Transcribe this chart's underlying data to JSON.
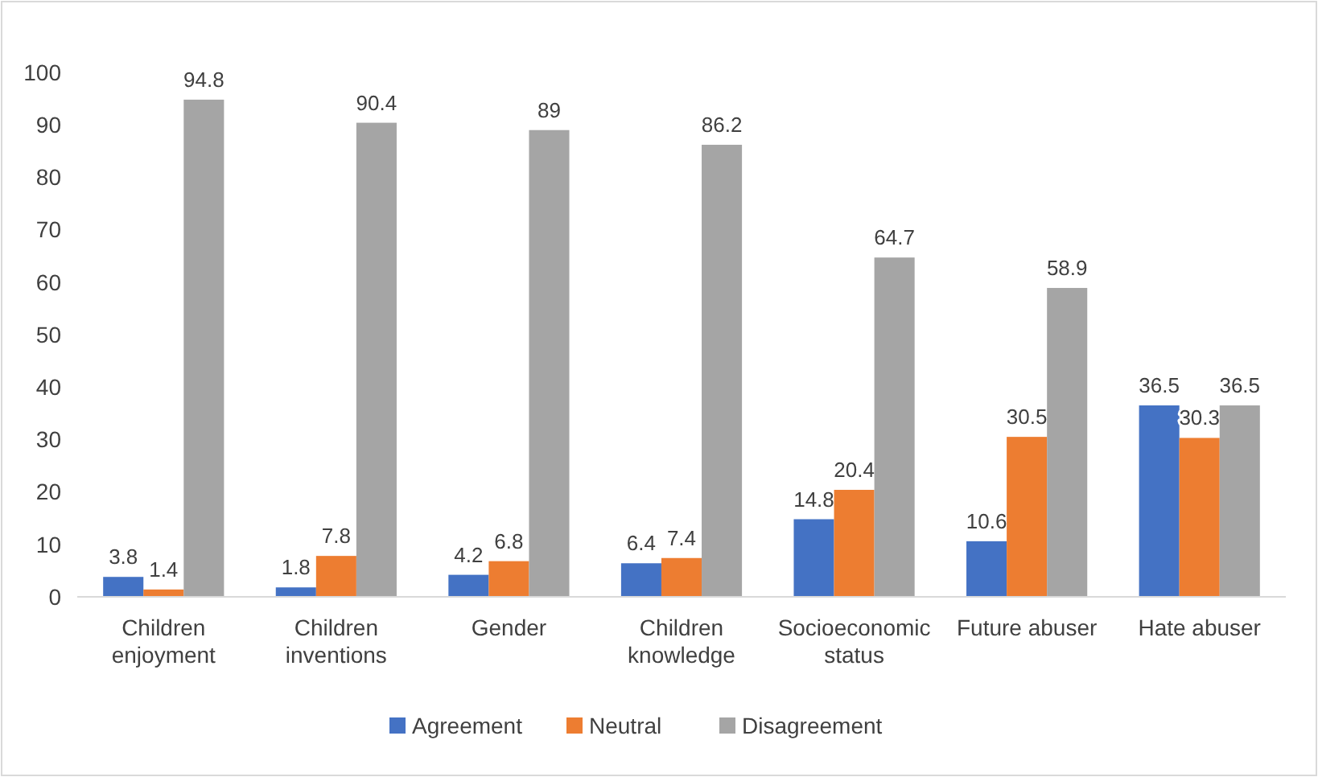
{
  "chart_data": {
    "type": "bar",
    "categories": [
      "Children enjoyment",
      "Children inventions",
      "Gender",
      "Children knowledge",
      "Socioeconomic status",
      "Future abuser",
      "Hate abuser"
    ],
    "series": [
      {
        "name": "Agreement",
        "color": "#4472c4",
        "values": [
          3.8,
          1.8,
          4.2,
          6.4,
          14.8,
          10.6,
          36.5
        ]
      },
      {
        "name": "Neutral",
        "color": "#ed7d31",
        "values": [
          1.4,
          7.8,
          6.8,
          7.4,
          20.4,
          30.5,
          30.3
        ]
      },
      {
        "name": "Disagreement",
        "color": "#a5a5a5",
        "values": [
          94.8,
          90.4,
          89,
          86.2,
          64.7,
          58.9,
          36.5
        ]
      }
    ],
    "ylim": [
      0,
      100
    ],
    "yticks": [
      0,
      10,
      20,
      30,
      40,
      50,
      60,
      70,
      80,
      90,
      100
    ],
    "data_labels": true,
    "legend": "bottom",
    "grid": false
  }
}
